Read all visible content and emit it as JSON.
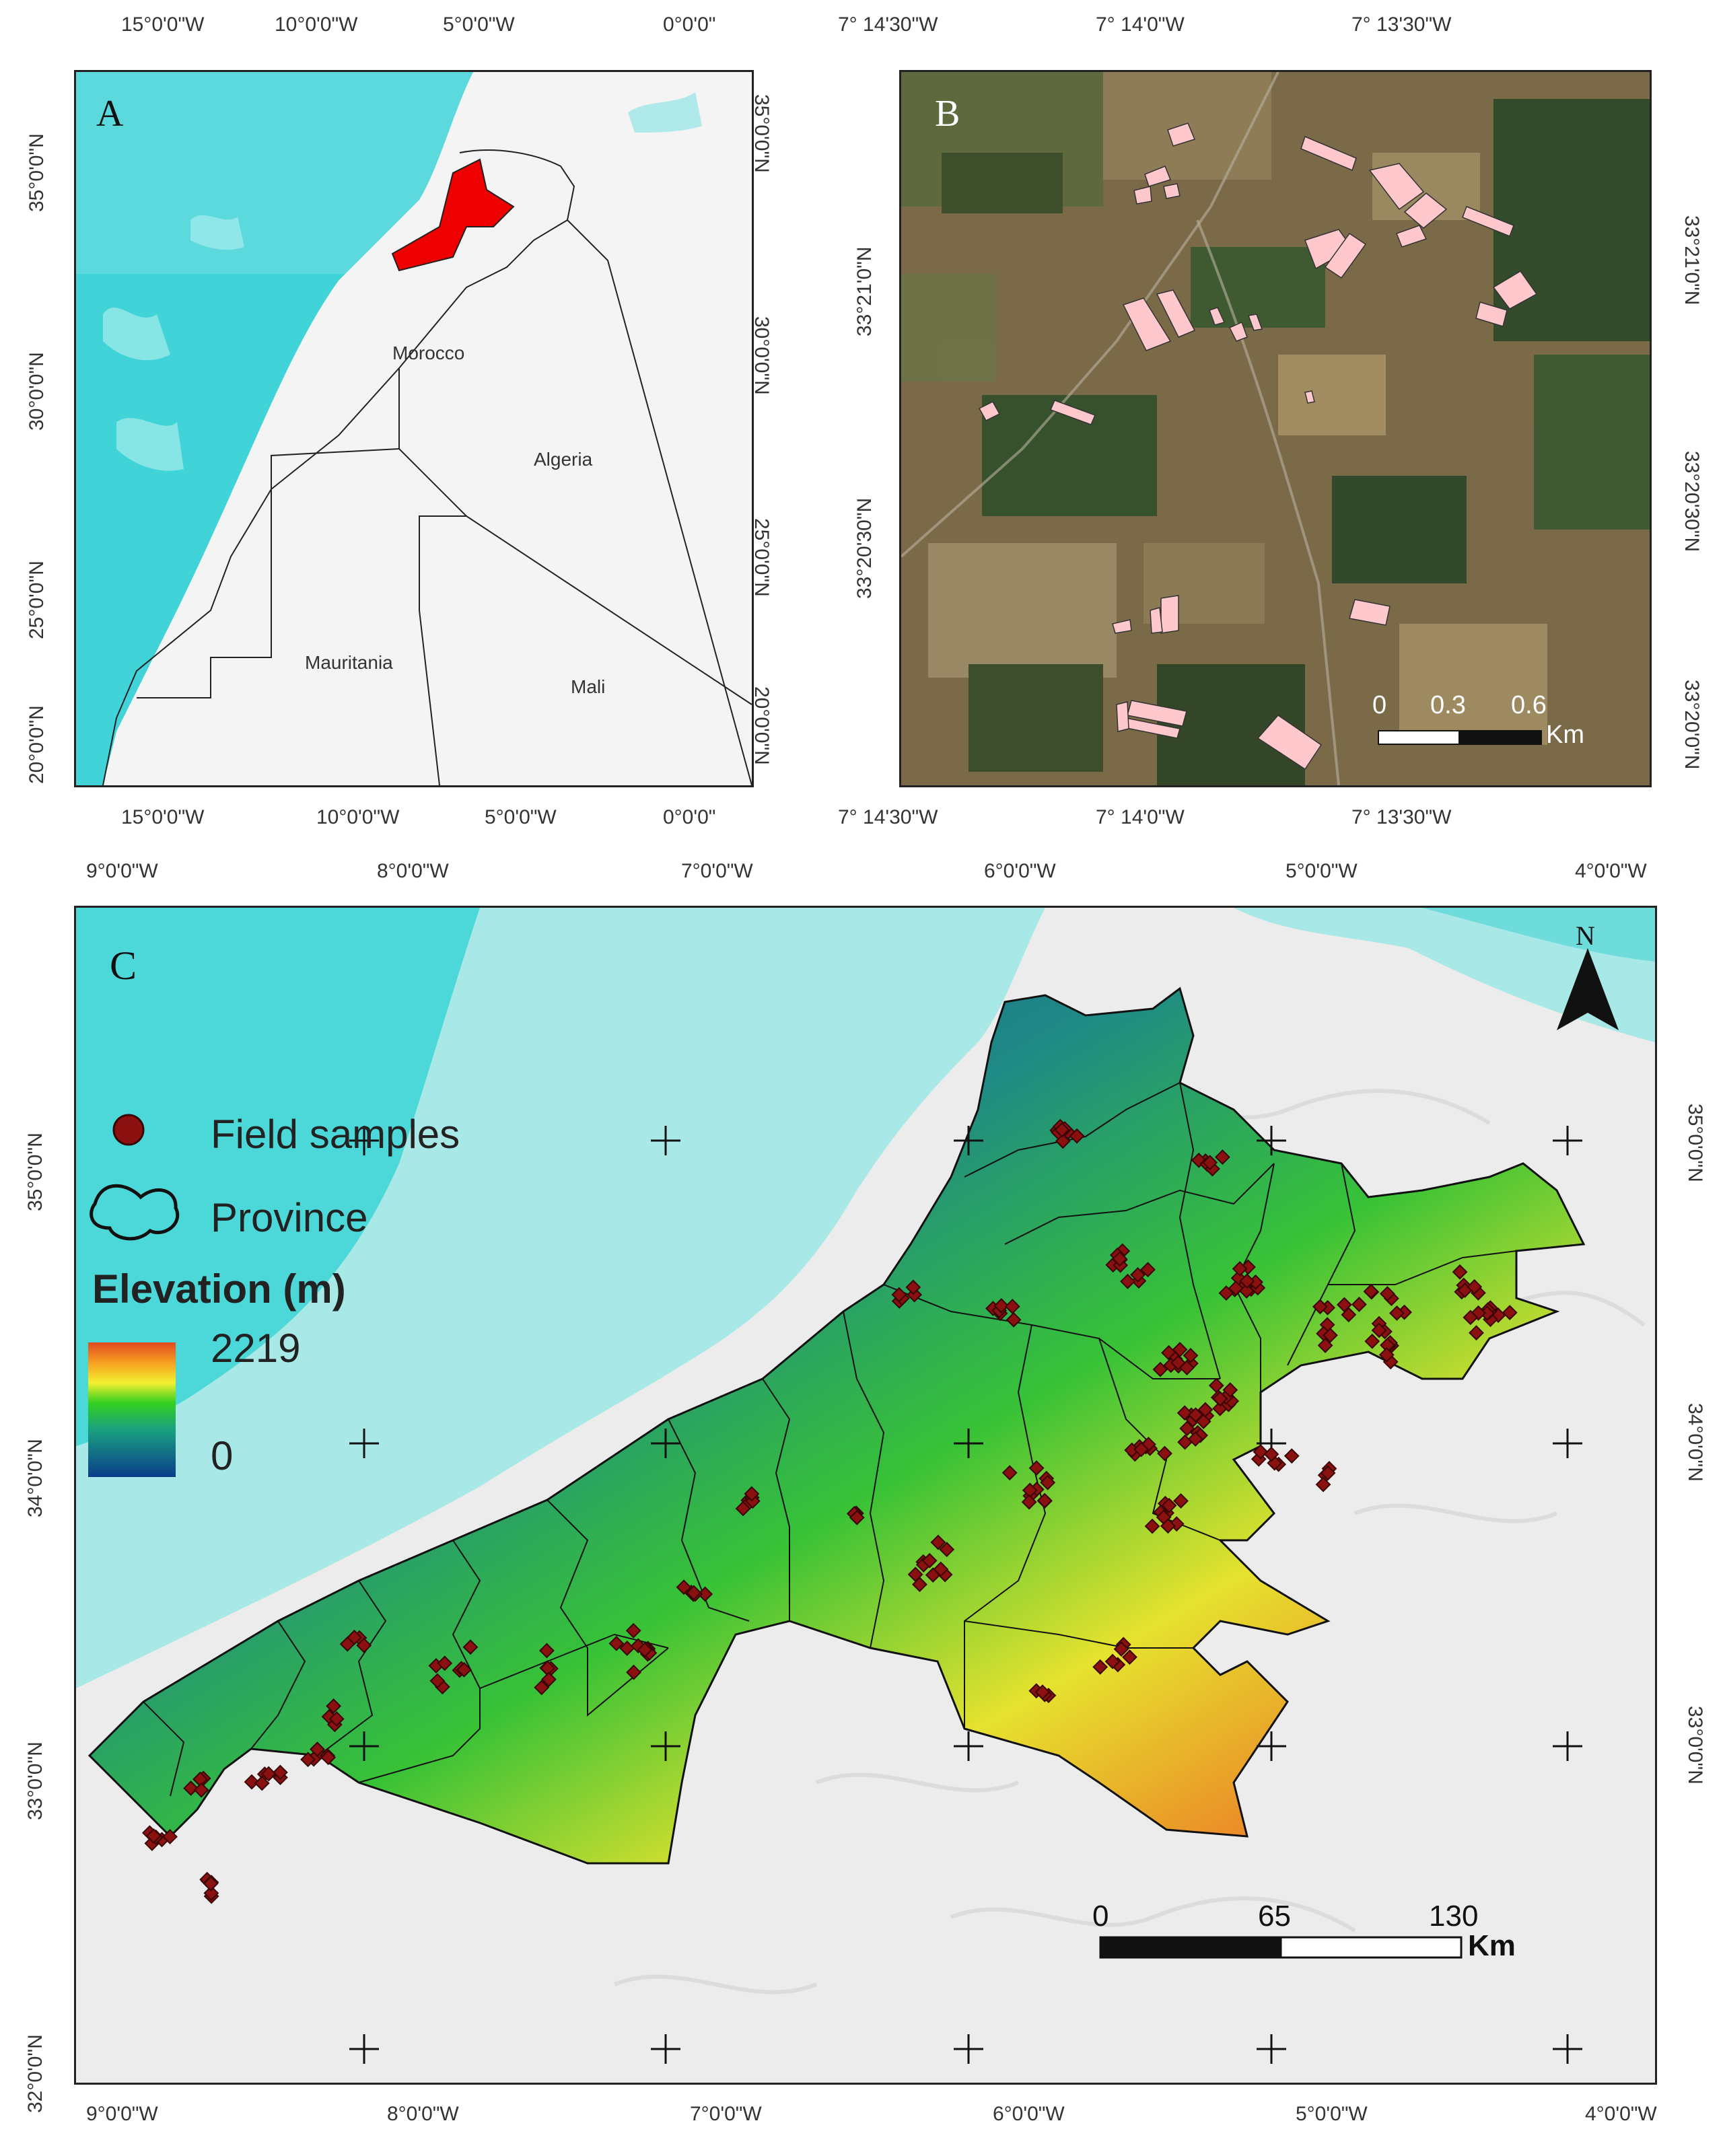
{
  "panelA": {
    "letter": "A",
    "top_labels": [
      "15°0'0\"W",
      "10°0'0\"W",
      "5°0'0\"W",
      "0°0'0\""
    ],
    "bottom_labels": [
      "15°0'0\"W",
      "10°0'0\"W",
      "5°0'0\"W",
      "0°0'0\""
    ],
    "left_labels": [
      "35°0'0\"N",
      "30°0'0\"N",
      "25°0'0\"N",
      "20°0'0\"N"
    ],
    "right_labels": [
      "35°0'0\"N",
      "30°0'0\"N",
      "25°0'0\"N",
      "20°0'0\"N"
    ],
    "countries": [
      "Morocco",
      "Algeria",
      "Mauritania",
      "Mali"
    ]
  },
  "panelB": {
    "letter": "B",
    "top_labels": [
      "7° 14'30\"W",
      "7° 14'0\"W",
      "7° 13'30\"W"
    ],
    "bottom_labels": [
      "7° 14'30\"W",
      "7° 14'0\"W",
      "7° 13'30\"W"
    ],
    "left_labels": [
      "33°21'0\"N",
      "33°20'30\"N"
    ],
    "right_labels": [
      "33°21'0\"N",
      "33°20'30\"N",
      "33°20'0\"N"
    ],
    "scale": {
      "ticks": [
        "0",
        "0.3",
        "0.6"
      ],
      "unit": "Km"
    }
  },
  "panelC": {
    "letter": "C",
    "north": "N",
    "top_labels": [
      "9°0'0\"W",
      "8°0'0\"W",
      "7°0'0\"W",
      "6°0'0\"W",
      "5°0'0\"W",
      "4°0'0\"W"
    ],
    "bottom_labels": [
      "9°0'0\"W",
      "8°0'0\"W",
      "7°0'0\"W",
      "6°0'0\"W",
      "5°0'0\"W",
      "4°0'0\"W"
    ],
    "left_labels": [
      "35°0'0\"N",
      "34°0'0\"N",
      "33°0'0\"N",
      "32°0'0\"N"
    ],
    "right_labels": [
      "35°0'0\"N",
      "34°0'0\"N",
      "33°0'0\"N"
    ],
    "legend": {
      "samples": "Field samples",
      "province": "Province",
      "elevation_title": "Elevation (m)",
      "max": "2219",
      "min": "0"
    },
    "scale": {
      "ticks": [
        "0",
        "65",
        "130"
      ],
      "unit": "Km"
    }
  },
  "colors": {
    "sea": "#3fd2d6",
    "highlight": "#ee0000",
    "field": "#ffc8cc",
    "sample": "#8b1010",
    "elev_low": "#0a3e8a",
    "elev_mid": "#32d020",
    "elev_high": "#e04a20"
  }
}
